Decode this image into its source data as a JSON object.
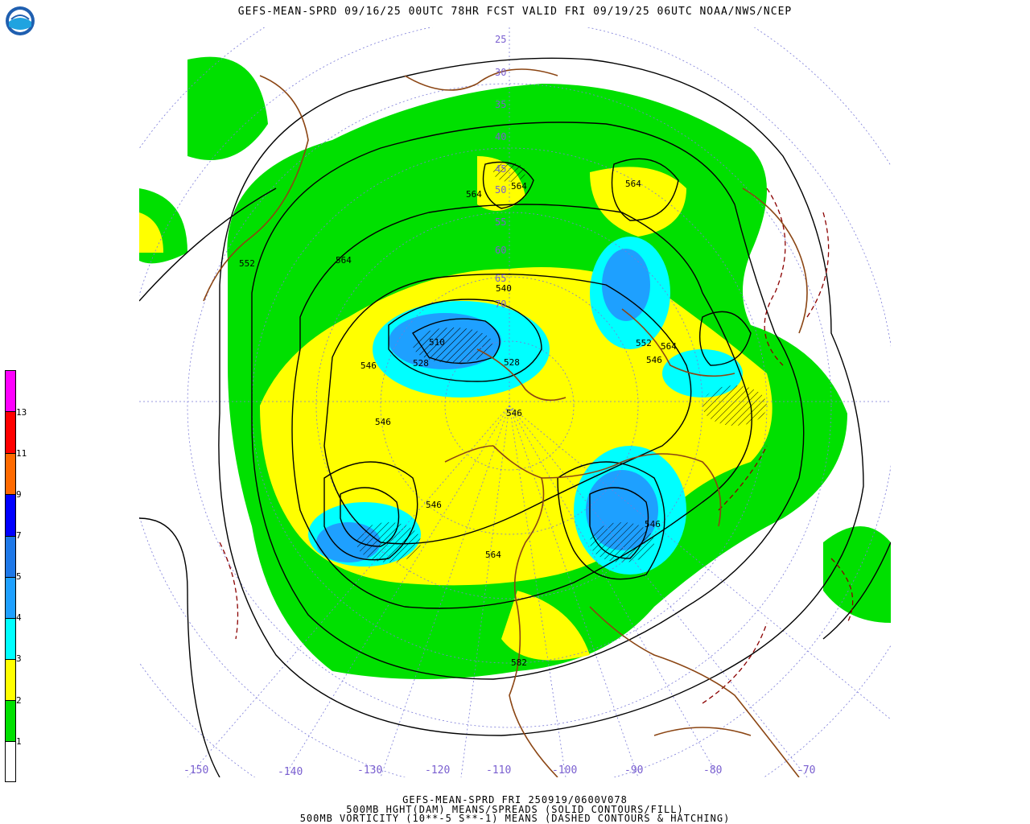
{
  "header": {
    "title": "GEFS-MEAN-SPRD 09/16/25 00UTC 78HR FCST VALID FRI 09/19/25 06UTC NOAA/NWS/NCEP",
    "logo_text": "NOAA"
  },
  "legend": {
    "levels": [
      "1",
      "2",
      "3",
      "4",
      "5",
      "7",
      "9",
      "11",
      "13"
    ],
    "colors": [
      "#ffffff",
      "#00e000",
      "#ffff00",
      "#00ffff",
      "#1ea0ff",
      "#0000ff",
      "#ff6a00",
      "#ff0000",
      "#ff00ff"
    ]
  },
  "map": {
    "latitude_labels": [
      "25",
      "30",
      "35",
      "40",
      "45",
      "50",
      "55",
      "60",
      "65",
      "70"
    ],
    "longitude_labels": [
      "-150",
      "-140",
      "-130",
      "-120",
      "-110",
      "-100",
      "-90",
      "-80",
      "-70"
    ],
    "contour_labels": [
      "564",
      "564",
      "564",
      "564",
      "552",
      "540",
      "510",
      "528",
      "546",
      "546",
      "528",
      "546",
      "546",
      "546",
      "546",
      "564",
      "564",
      "582",
      "552"
    ]
  },
  "footer": {
    "line1": "GEFS-MEAN-SPRD FRI 250919/0600V078",
    "line2": "500MB HGHT(DAM) MEANS/SPREADS (SOLID CONTOURS/FILL)",
    "line3": "500MB VORTICITY (10**-5 S**-1) MEANS (DASHED CONTOURS & HATCHING)"
  }
}
